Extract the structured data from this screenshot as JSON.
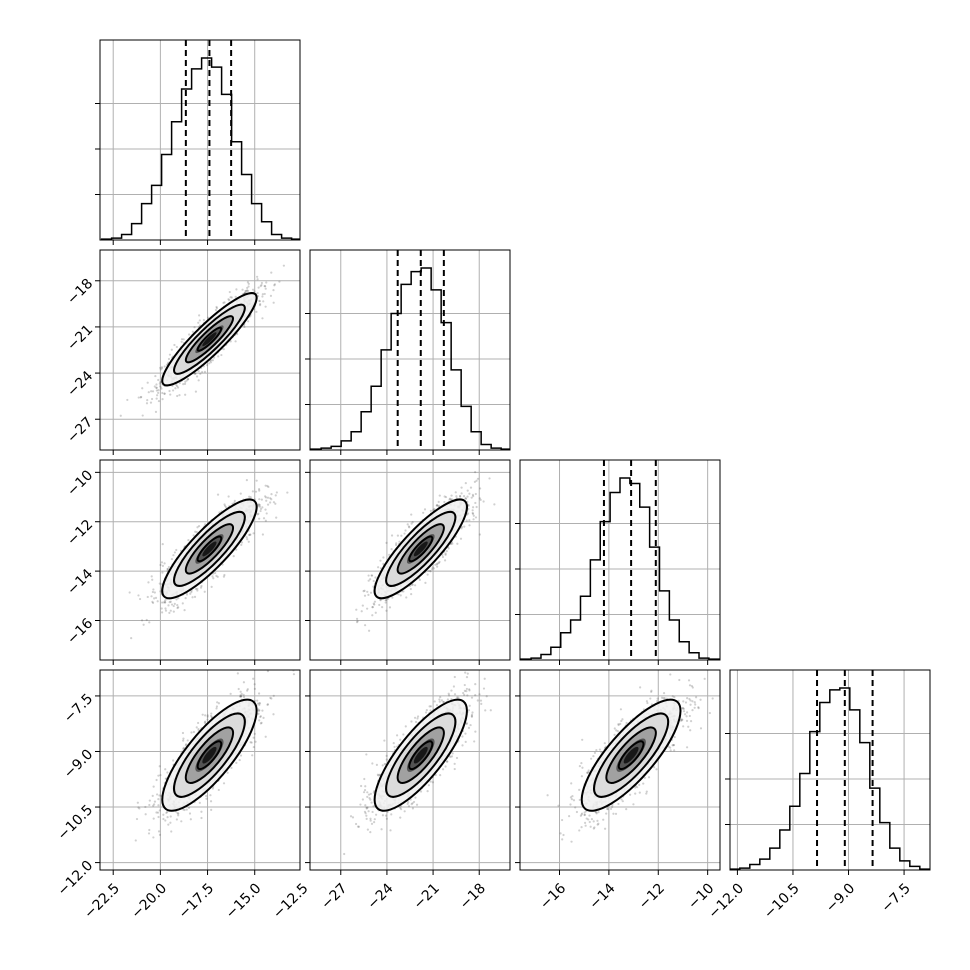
{
  "chart_data": {
    "type": "corner",
    "grid": true,
    "parameters": [
      {
        "index": 0,
        "range": [
          -23.2,
          -12.6
        ],
        "ticks": [
          -22.5,
          -20.0,
          -17.5,
          -15.0,
          -12.5
        ],
        "tick_labels": [
          "−22.5",
          "−20.0",
          "−17.5",
          "−15.0",
          "−12.5"
        ],
        "mean": -17.4,
        "sigma": 1.25,
        "quantiles": [
          -18.65,
          -17.4,
          -16.25
        ],
        "hist_x": [
          -22.85,
          -22.32,
          -21.79,
          -21.26,
          -20.73,
          -20.2,
          -19.67,
          -19.14,
          -18.61,
          -18.08,
          -17.55,
          -17.02,
          -16.49,
          -15.96,
          -15.43,
          -14.9,
          -14.37,
          -13.84,
          -13.31,
          -12.78
        ],
        "hist_counts": [
          0.005,
          0.01,
          0.03,
          0.09,
          0.2,
          0.3,
          0.47,
          0.65,
          0.83,
          0.94,
          1.0,
          0.95,
          0.8,
          0.54,
          0.36,
          0.2,
          0.1,
          0.03,
          0.01,
          0.005
        ]
      },
      {
        "index": 1,
        "range": [
          -29.0,
          -16.0
        ],
        "ticks": [
          -27,
          -24,
          -21,
          -18
        ],
        "tick_labels": [
          "−27",
          "−24",
          "−21",
          "−18"
        ],
        "mean": -21.8,
        "sigma": 1.5,
        "quantiles": [
          -23.3,
          -21.8,
          -20.3
        ],
        "hist_x": [
          -28.6,
          -27.95,
          -27.3,
          -26.65,
          -26.0,
          -25.35,
          -24.7,
          -24.05,
          -23.4,
          -22.75,
          -22.1,
          -21.45,
          -20.8,
          -20.15,
          -19.5,
          -18.85,
          -18.2,
          -17.55,
          -16.9,
          -16.25
        ],
        "hist_counts": [
          0.005,
          0.01,
          0.02,
          0.05,
          0.1,
          0.21,
          0.35,
          0.55,
          0.75,
          0.91,
          0.98,
          1.0,
          0.88,
          0.7,
          0.44,
          0.24,
          0.1,
          0.03,
          0.01,
          0.005
        ]
      },
      {
        "index": 2,
        "range": [
          -17.6,
          -9.5
        ],
        "ticks": [
          -16,
          -14,
          -12,
          -10
        ],
        "tick_labels": [
          "−16",
          "−14",
          "−12",
          "−10"
        ],
        "mean": -13.1,
        "sigma": 1.0,
        "quantiles": [
          -14.2,
          -13.1,
          -12.1
        ],
        "hist_x": [
          -17.35,
          -16.95,
          -16.55,
          -16.15,
          -15.75,
          -15.35,
          -14.95,
          -14.55,
          -14.15,
          -13.75,
          -13.35,
          -12.95,
          -12.55,
          -12.15,
          -11.75,
          -11.35,
          -10.95,
          -10.55,
          -10.15,
          -9.75
        ],
        "hist_counts": [
          0.005,
          0.01,
          0.03,
          0.07,
          0.15,
          0.22,
          0.35,
          0.55,
          0.76,
          0.92,
          1.0,
          0.97,
          0.84,
          0.62,
          0.38,
          0.22,
          0.1,
          0.04,
          0.01,
          0.005
        ]
      },
      {
        "index": 3,
        "range": [
          -12.2,
          -6.8
        ],
        "ticks": [
          -12.0,
          -10.5,
          -9.0,
          -7.5
        ],
        "tick_labels": [
          "−12.0",
          "−10.5",
          "−9.0",
          "−7.5"
        ],
        "mean": -9.1,
        "sigma": 0.75,
        "quantiles": [
          -9.85,
          -9.1,
          -8.35
        ],
        "hist_x": [
          -12.07,
          -11.8,
          -11.53,
          -11.26,
          -10.99,
          -10.72,
          -10.45,
          -10.18,
          -9.91,
          -9.64,
          -9.37,
          -9.1,
          -8.83,
          -8.56,
          -8.29,
          -8.02,
          -7.75,
          -7.48,
          -7.21,
          -6.94
        ],
        "hist_counts": [
          0.005,
          0.01,
          0.03,
          0.06,
          0.12,
          0.22,
          0.35,
          0.53,
          0.76,
          0.92,
          0.99,
          1.0,
          0.88,
          0.7,
          0.45,
          0.26,
          0.12,
          0.05,
          0.02,
          0.005
        ]
      }
    ],
    "correlations": [
      [
        1.0,
        0.9,
        0.85,
        0.8
      ],
      [
        0.9,
        1.0,
        0.85,
        0.8
      ],
      [
        0.85,
        0.85,
        1.0,
        0.8
      ],
      [
        0.8,
        0.8,
        0.8,
        1.0
      ]
    ],
    "contour_sigma_levels": [
      0.5,
      1.0,
      1.5,
      2.0
    ],
    "colors": {
      "line": "#000000",
      "grid": "#b0b0b0",
      "samples": "#555555"
    }
  }
}
